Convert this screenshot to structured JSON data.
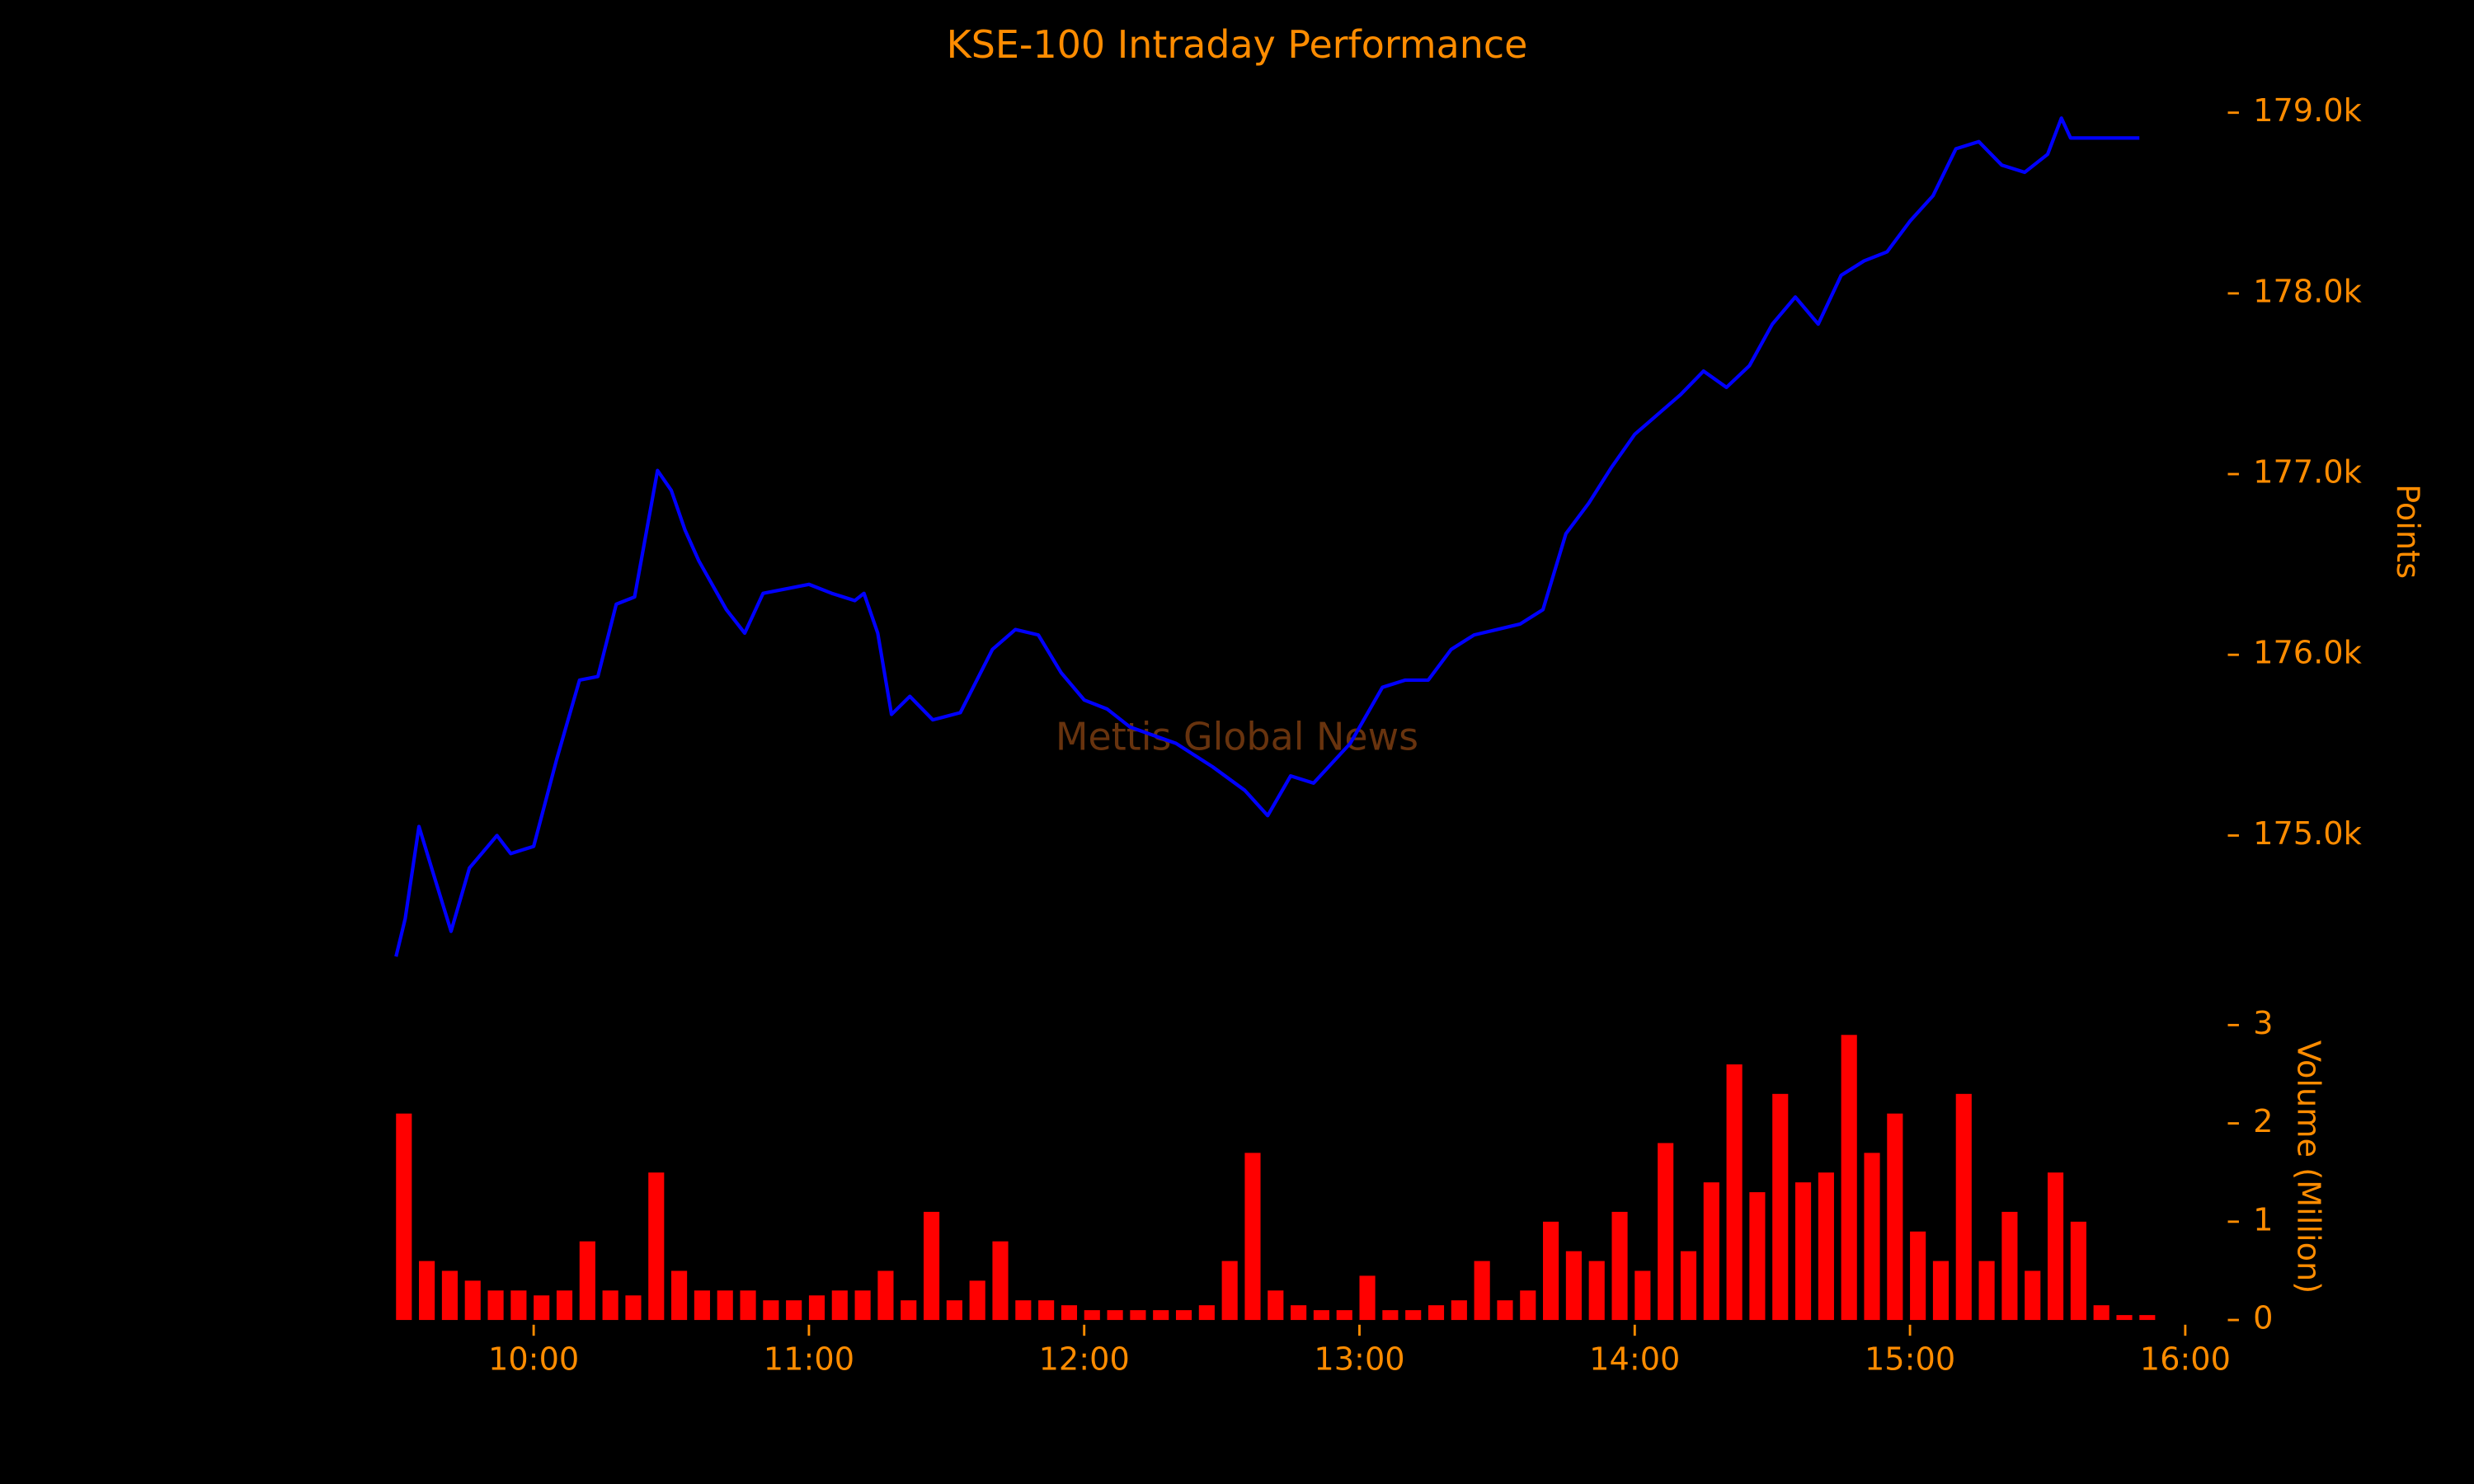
{
  "chart_data": [
    {
      "type": "line",
      "title": "KSE-100 Intraday Performance",
      "ylabel": "Points",
      "watermark": "Mettis Global News",
      "xlim": [
        "09:30",
        "16:00"
      ],
      "ylim": [
        174300,
        179100
      ],
      "yticks": [
        {
          "value": 175000,
          "label": "175.0k"
        },
        {
          "value": 176000,
          "label": "176.0k"
        },
        {
          "value": 177000,
          "label": "177.0k"
        },
        {
          "value": 178000,
          "label": "178.0k"
        },
        {
          "value": 179000,
          "label": "179.0k"
        }
      ],
      "x": [
        "09:30",
        "09:32",
        "09:35",
        "09:38",
        "09:42",
        "09:46",
        "09:52",
        "09:55",
        "10:00",
        "10:05",
        "10:10",
        "10:14",
        "10:18",
        "10:22",
        "10:25",
        "10:27",
        "10:30",
        "10:33",
        "10:36",
        "10:42",
        "10:46",
        "10:50",
        "10:56",
        "11:00",
        "11:05",
        "11:10",
        "11:12",
        "11:15",
        "11:18",
        "11:22",
        "11:27",
        "11:33",
        "11:40",
        "11:45",
        "11:50",
        "11:55",
        "12:00",
        "12:05",
        "12:10",
        "12:20",
        "12:28",
        "12:35",
        "12:40",
        "12:45",
        "12:50",
        "12:58",
        "13:05",
        "13:10",
        "13:15",
        "13:20",
        "13:25",
        "13:30",
        "13:35",
        "13:40",
        "13:45",
        "13:50",
        "13:55",
        "14:00",
        "14:05",
        "14:10",
        "14:15",
        "14:20",
        "14:25",
        "14:30",
        "14:35",
        "14:40",
        "14:45",
        "14:50",
        "14:55",
        "15:00",
        "15:05",
        "15:10",
        "15:15",
        "15:20",
        "15:25",
        "15:30",
        "15:33",
        "15:35",
        "15:50"
      ],
      "series": [
        {
          "color": "#0000ff",
          "values": [
            174330,
            174540,
            175050,
            174800,
            174470,
            174820,
            175000,
            174900,
            174940,
            175420,
            175860,
            175880,
            176280,
            176320,
            176740,
            177020,
            176910,
            176690,
            176520,
            176250,
            176120,
            176340,
            176370,
            176390,
            176340,
            176300,
            176340,
            176120,
            175670,
            175770,
            175640,
            175680,
            176030,
            176140,
            176110,
            175900,
            175750,
            175700,
            175600,
            175510,
            175380,
            175250,
            175110,
            175330,
            175290,
            175510,
            175820,
            175860,
            175860,
            176030,
            176110,
            176140,
            176170,
            176250,
            176670,
            176840,
            177040,
            177220,
            177330,
            177440,
            177570,
            177480,
            177600,
            177830,
            177980,
            177830,
            178100,
            178180,
            178230,
            178400,
            178540,
            178800,
            178840,
            178710,
            178670,
            178770,
            178970,
            178860,
            178860
          ]
        }
      ]
    },
    {
      "type": "bar",
      "ylabel": "Volume (Million)",
      "xlim": [
        "09:30",
        "16:00"
      ],
      "xticks": [
        "10:00",
        "11:00",
        "12:00",
        "13:00",
        "14:00",
        "15:00",
        "16:00"
      ],
      "ylim": [
        0,
        3
      ],
      "yticks": [
        0,
        1,
        2,
        3
      ],
      "x": [
        "09:30",
        "09:35",
        "09:40",
        "09:45",
        "09:50",
        "09:55",
        "10:00",
        "10:05",
        "10:10",
        "10:15",
        "10:20",
        "10:25",
        "10:30",
        "10:35",
        "10:40",
        "10:45",
        "10:50",
        "10:55",
        "11:00",
        "11:05",
        "11:10",
        "11:15",
        "11:20",
        "11:25",
        "11:30",
        "11:35",
        "11:40",
        "11:45",
        "11:50",
        "11:55",
        "12:00",
        "12:05",
        "12:10",
        "12:15",
        "12:20",
        "12:25",
        "12:30",
        "12:35",
        "12:40",
        "12:45",
        "12:50",
        "12:55",
        "13:00",
        "13:05",
        "13:10",
        "13:15",
        "13:20",
        "13:25",
        "13:30",
        "13:35",
        "13:40",
        "13:45",
        "13:50",
        "13:55",
        "14:00",
        "14:05",
        "14:10",
        "14:15",
        "14:20",
        "14:25",
        "14:30",
        "14:35",
        "14:40",
        "14:45",
        "14:50",
        "14:55",
        "15:00",
        "15:05",
        "15:10",
        "15:15",
        "15:20",
        "15:25",
        "15:30",
        "15:35",
        "15:40",
        "15:45",
        "15:50"
      ],
      "series": [
        {
          "color": "#ff0000",
          "values": [
            2.1,
            0.6,
            0.5,
            0.4,
            0.3,
            0.3,
            0.25,
            0.3,
            0.8,
            0.3,
            0.25,
            1.5,
            0.5,
            0.3,
            0.3,
            0.3,
            0.2,
            0.2,
            0.25,
            0.3,
            0.3,
            0.5,
            0.2,
            1.1,
            0.2,
            0.4,
            0.8,
            0.2,
            0.2,
            0.15,
            0.1,
            0.1,
            0.1,
            0.1,
            0.1,
            0.15,
            0.6,
            1.7,
            0.3,
            0.15,
            0.1,
            0.1,
            0.45,
            0.1,
            0.1,
            0.15,
            0.2,
            0.6,
            0.2,
            0.3,
            1.0,
            0.7,
            0.6,
            1.1,
            0.5,
            1.8,
            0.7,
            1.4,
            2.6,
            1.3,
            2.3,
            1.4,
            1.5,
            2.9,
            1.7,
            2.1,
            0.9,
            0.6,
            2.3,
            0.6,
            1.1,
            0.5,
            1.5,
            1.0,
            0.15,
            0.05,
            0.05
          ]
        }
      ]
    }
  ]
}
